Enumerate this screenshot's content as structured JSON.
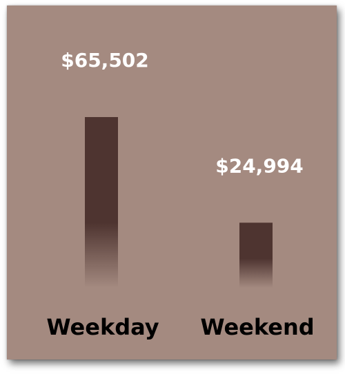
{
  "chart_data": {
    "type": "bar",
    "categories": [
      "Weekday",
      "Weekend"
    ],
    "values": [
      65502,
      24994
    ],
    "value_labels": [
      "$65,502",
      "$24,994"
    ],
    "title": "",
    "xlabel": "",
    "ylabel": "",
    "grid": false,
    "legend": "none"
  },
  "colors": {
    "background": "#a48a80",
    "bar": "#4e3430",
    "data_label": "#ffffff",
    "category_label": "#000000"
  }
}
